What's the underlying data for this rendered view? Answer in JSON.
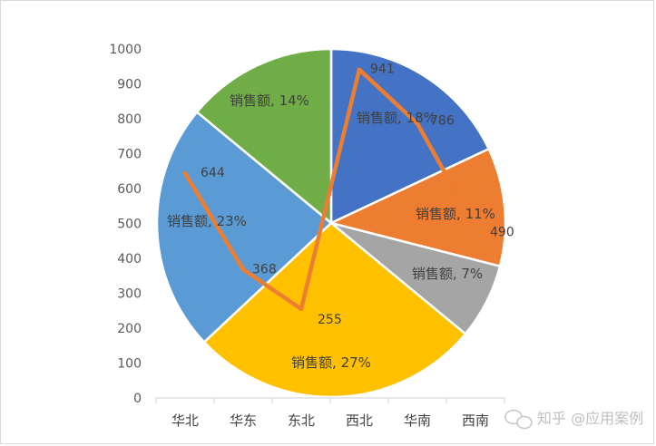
{
  "chart_data": {
    "type": "pie",
    "title": "",
    "categories": [
      "华北",
      "华东",
      "东北",
      "西北",
      "华南",
      "西南"
    ],
    "pie": {
      "series_name": "销售额",
      "slices": [
        {
          "category": "西北",
          "percent": 18,
          "color": "#4472c4",
          "label": "销售额, 18%"
        },
        {
          "category": "华南",
          "percent": 11,
          "color": "#ed7d31",
          "label": "销售额, 11%"
        },
        {
          "category": "西南",
          "percent": 7,
          "color": "#a5a5a5",
          "label": "销售额, 7%"
        },
        {
          "category": "东北",
          "percent": 27,
          "color": "#ffc000",
          "label": "销售额, 27%"
        },
        {
          "category": "华北",
          "percent": 23,
          "color": "#5b9bd5",
          "label": "销售额, 23%"
        },
        {
          "category": "华东",
          "percent": 14,
          "color": "#70ad47",
          "label": "销售额, 14%"
        }
      ]
    },
    "line": {
      "color": "#ed7d31",
      "values": [
        644,
        368,
        255,
        941,
        786,
        490
      ],
      "value_labels": [
        "644",
        "368",
        "255",
        "941",
        "786",
        "490"
      ]
    },
    "ylim": [
      0,
      1000
    ],
    "yticks": [
      0,
      100,
      200,
      300,
      400,
      500,
      600,
      700,
      800,
      900,
      1000
    ],
    "ytick_labels": [
      "0",
      "100",
      "200",
      "300",
      "400",
      "500",
      "600",
      "700",
      "800",
      "900",
      "1000"
    ],
    "grid": false,
    "legend": "none"
  },
  "watermark": {
    "text": "知乎 @应用案例"
  }
}
